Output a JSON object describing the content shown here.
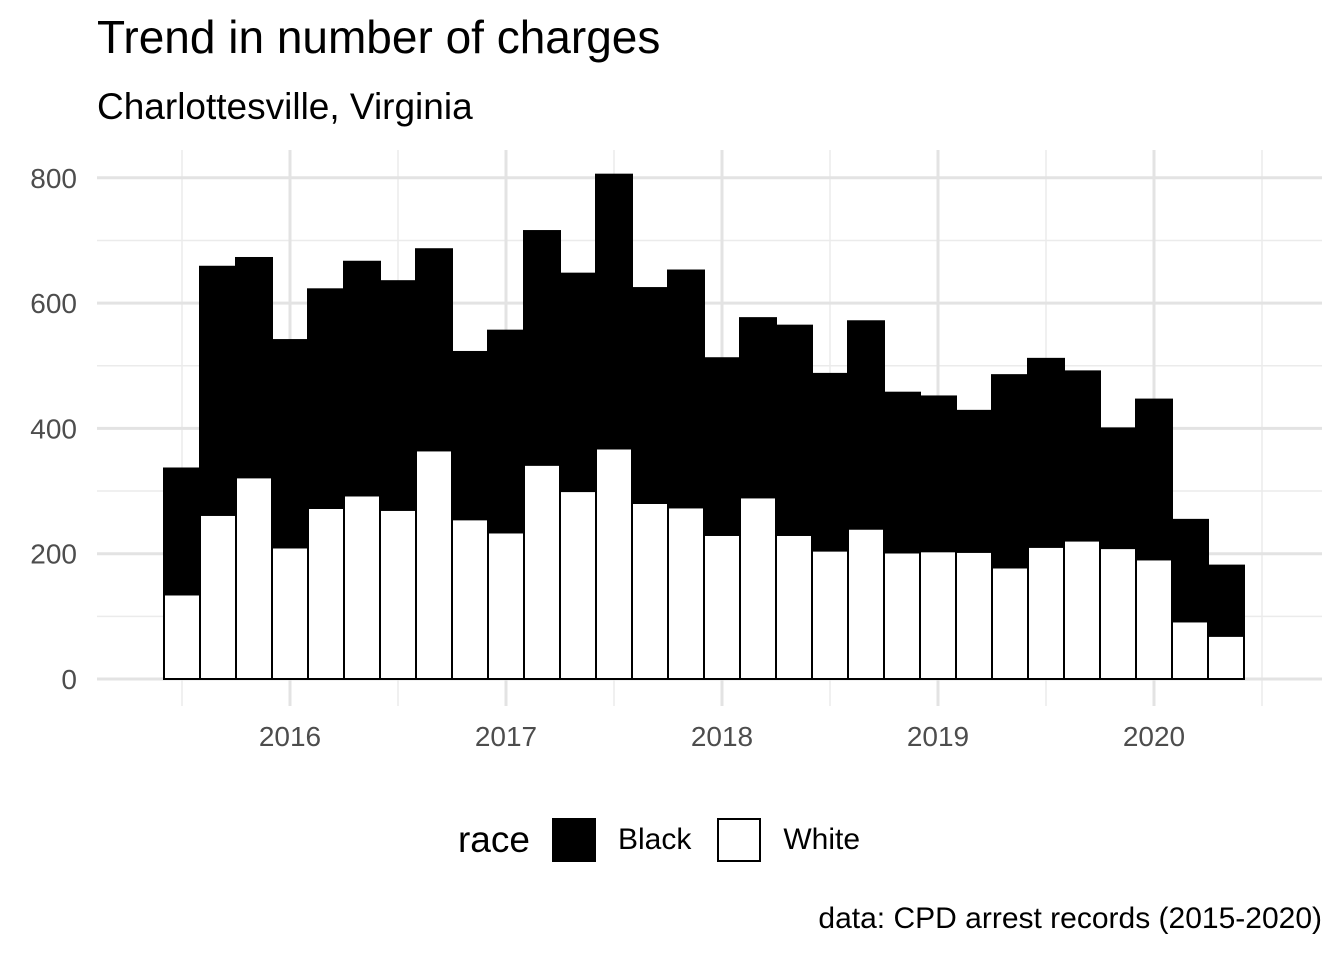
{
  "chart_data": {
    "type": "bar",
    "stacked": true,
    "title": "Trend in number of charges",
    "subtitle": "Charlottesville, Virginia",
    "caption": "data: CPD arrest records (2015-2020)",
    "xlabel": "",
    "ylabel": "",
    "x_ticks": [
      "2016",
      "2017",
      "2018",
      "2019",
      "2020"
    ],
    "y_ticks": [
      0,
      200,
      400,
      600,
      800
    ],
    "ylim": [
      0,
      830
    ],
    "grid": true,
    "legend": {
      "title": "race",
      "position": "bottom"
    },
    "periods": [
      "2015-07",
      "2015-09",
      "2015-11",
      "2016-01",
      "2016-03",
      "2016-05",
      "2016-07",
      "2016-09",
      "2016-11",
      "2017-01",
      "2017-03",
      "2017-05",
      "2017-07",
      "2017-09",
      "2017-11",
      "2018-01",
      "2018-03",
      "2018-05",
      "2018-07",
      "2018-09",
      "2018-11",
      "2019-01",
      "2019-03",
      "2019-05",
      "2019-07",
      "2019-09",
      "2019-11",
      "2020-01",
      "2020-03",
      "2020-05",
      "2020-07"
    ],
    "series": [
      {
        "name": "White",
        "color": "#ffffff",
        "values": [
          135,
          262,
          322,
          210,
          273,
          293,
          270,
          365,
          255,
          234,
          342,
          300,
          368,
          281,
          274,
          230,
          290,
          230,
          205,
          240,
          202,
          204,
          203,
          178,
          211,
          221,
          209,
          191,
          92,
          69,
          0
        ]
      },
      {
        "name": "Black",
        "color": "#000000",
        "values": [
          201,
          396,
          350,
          331,
          349,
          373,
          365,
          321,
          267,
          322,
          373,
          347,
          437,
          343,
          378,
          282,
          286,
          334,
          282,
          331,
          255,
          247,
          225,
          307,
          300,
          270,
          191,
          255,
          162,
          112,
          0
        ]
      }
    ]
  }
}
